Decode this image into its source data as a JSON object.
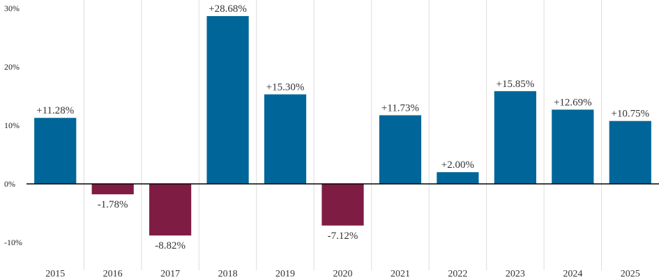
{
  "chart_data": {
    "type": "bar",
    "title": "",
    "xlabel": "",
    "ylabel": "",
    "categories": [
      "2015",
      "2016",
      "2017",
      "2018",
      "2019",
      "2020",
      "2021",
      "2022",
      "2023",
      "2024",
      "2025"
    ],
    "values": [
      11.28,
      -1.78,
      -8.82,
      28.68,
      15.3,
      -7.12,
      11.73,
      2.0,
      15.85,
      12.69,
      10.75
    ],
    "data_labels": [
      "+11.28%",
      "-1.78%",
      "-8.82%",
      "+28.68%",
      "+15.30%",
      "-7.12%",
      "+11.73%",
      "+2.00%",
      "+15.85%",
      "+12.69%",
      "+10.75%"
    ],
    "ylim": [
      -14,
      30
    ],
    "yticks": [
      -10,
      0,
      10,
      20,
      30
    ],
    "ytick_labels": [
      "-10%",
      "0%",
      "10%",
      "20%",
      "30%"
    ],
    "grid": "vertical separators between categories",
    "legend": "none",
    "colors": {
      "positive": "#006699",
      "negative": "#7f1c43",
      "zero_line": "#000000",
      "separator": "#dddddd"
    }
  }
}
